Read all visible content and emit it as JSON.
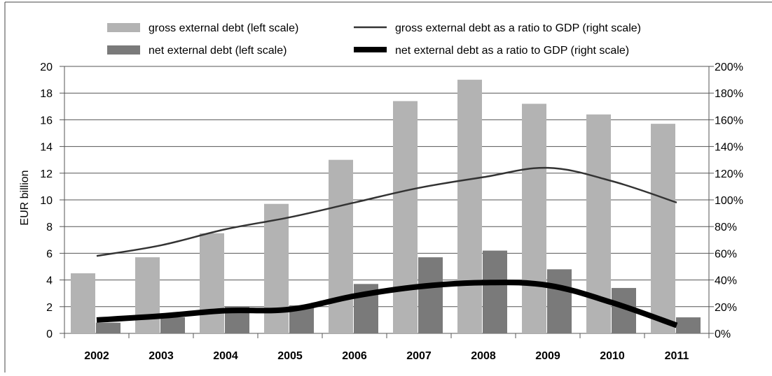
{
  "chart_data": {
    "type": "bar",
    "title": "",
    "ylabel": "EUR billion",
    "ylim": [
      0,
      20
    ],
    "y_ticks": [
      "0",
      "2",
      "4",
      "6",
      "8",
      "10",
      "12",
      "14",
      "16",
      "18",
      "20"
    ],
    "y2lim": [
      0,
      200
    ],
    "y2_ticks": [
      "0%",
      "20%",
      "40%",
      "60%",
      "80%",
      "100%",
      "120%",
      "140%",
      "160%",
      "180%",
      "200%"
    ],
    "grid": true,
    "legend_position": "top",
    "categories": [
      "2002",
      "2003",
      "2004",
      "2005",
      "2006",
      "2007",
      "2008",
      "2009",
      "2010",
      "2011"
    ],
    "series": [
      {
        "name": "gross external debt (left scale)",
        "type": "bar",
        "axis": "left",
        "color": "#b3b3b3",
        "values": [
          4.5,
          5.7,
          7.5,
          9.7,
          13.0,
          17.4,
          19.0,
          17.2,
          16.4,
          15.7
        ]
      },
      {
        "name": "net external debt (left scale)",
        "type": "bar",
        "axis": "left",
        "color": "#7a7a7a",
        "values": [
          0.8,
          1.2,
          2.0,
          2.1,
          3.7,
          5.7,
          6.2,
          4.8,
          3.4,
          1.2
        ]
      },
      {
        "name": "gross external debt as a ratio to GDP (right scale)",
        "type": "line",
        "axis": "right",
        "color": "#333333",
        "values": [
          58,
          66,
          78,
          87,
          98,
          109,
          117,
          124,
          114,
          98
        ]
      },
      {
        "name": "net external debt as a ratio to GDP (right scale)",
        "type": "line",
        "axis": "right",
        "color": "#000000",
        "values": [
          10,
          13,
          17,
          18,
          28,
          35,
          38,
          36,
          23,
          6
        ]
      }
    ]
  }
}
